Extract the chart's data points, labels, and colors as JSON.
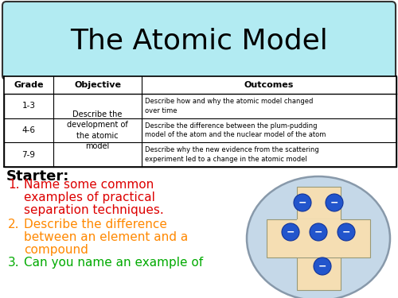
{
  "title": "The Atomic Model",
  "title_bg": "#b2ebf2",
  "title_border": "#333333",
  "bg_color": "#ffffff",
  "table_headers": [
    "Grade",
    "Objective",
    "Outcomes"
  ],
  "grade_texts": [
    "1-3",
    "4-6",
    "7-9"
  ],
  "obj_text": "Describe the\ndevelopment of\nthe atomic\nmodel",
  "outcome_texts": [
    "Describe how and why the atomic model changed\nover time",
    "Describe the difference between the plum-pudding\nmodel of the atom and the nuclear model of the atom",
    "Describe why the new evidence from the scattering\nexperiment led to a change in the atomic model"
  ],
  "starter_label": "Starter:",
  "items": [
    {
      "num": "1.",
      "text": "Name some common\nexamples of practical\nseparation techniques.",
      "color": "#dd0000"
    },
    {
      "num": "2.",
      "text": "Describe the difference\nbetween an element and a\ncompound",
      "color": "#ff8800"
    },
    {
      "num": "3.",
      "text": "Can you name an example of",
      "color": "#00aa00"
    }
  ],
  "atom_outer_color": "#c5d8e8",
  "atom_inner_color": "#f5deb3",
  "atom_inner_border": "#999977",
  "atom_outer_border": "#8899aa",
  "atom_electron_color": "#2255cc",
  "atom_electron_border": "#113399",
  "atom_electron_text": "#ffffff"
}
